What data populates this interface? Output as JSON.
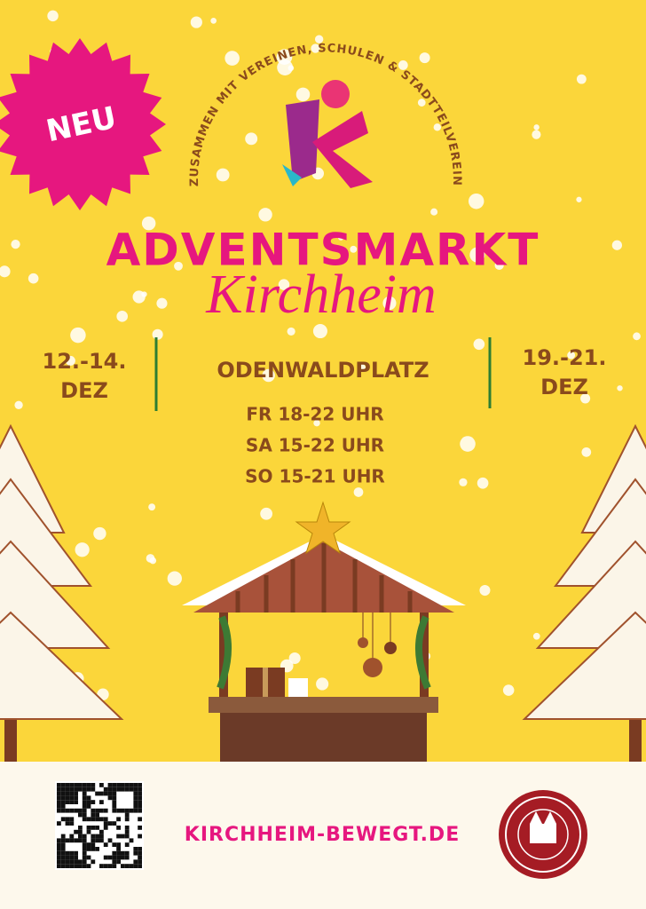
{
  "badge": "NEU",
  "tagline": "ZUSAMMEN MIT VEREINEN, SCHULEN & STADTTEILVEREIN",
  "title": "ADVENTSMARKT",
  "subtitle": "Kirchheim",
  "dates_left": [
    "12.-14.",
    "DEZ"
  ],
  "location": "ODENWALDPLATZ",
  "dates_right": [
    "19.-21.",
    "DEZ"
  ],
  "hours": [
    "FR 18-22 UHR",
    "SA 15-22 UHR",
    "SO 15-21 UHR"
  ],
  "website": "KIRCHHEIM-BEWEGT.DE"
}
